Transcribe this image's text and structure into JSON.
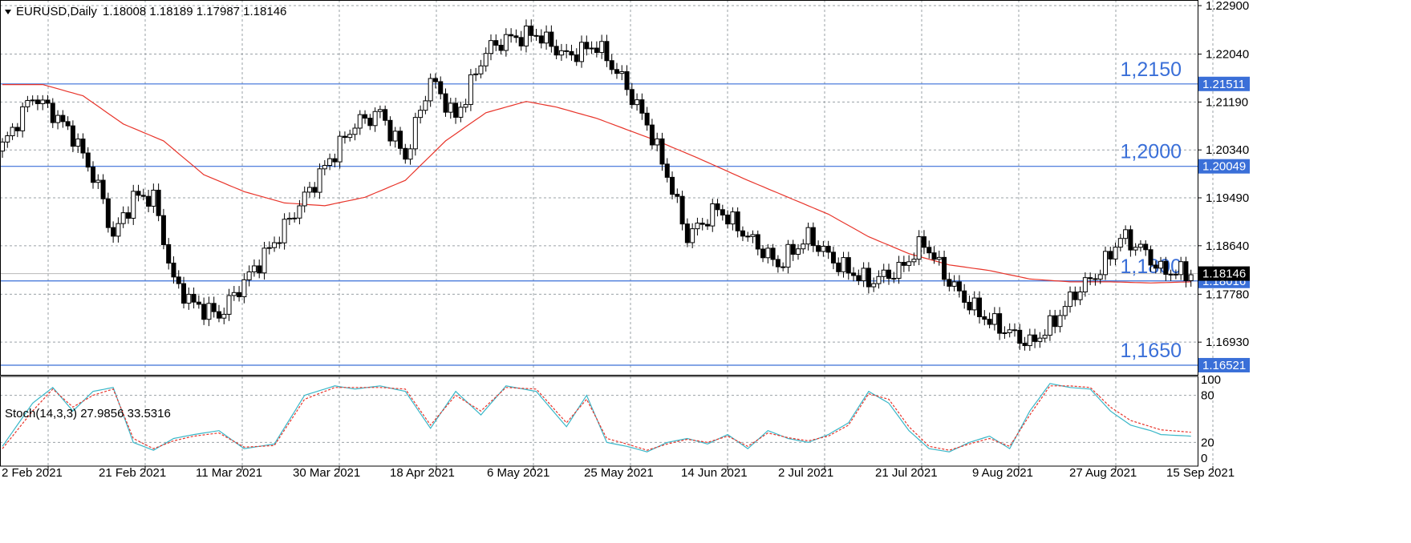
{
  "header": {
    "symbol": "EURUSD,Daily",
    "ohlc": "1.18008 1.18189 1.17987 1.18146",
    "indicator": "Stoch(14,3,3) 27.9856 33.5316"
  },
  "colors": {
    "bull_candle": "#ffffff",
    "bear_candle": "#000000",
    "moving_average": "#e8342a",
    "levels": "#3a6fd8",
    "stoch_main": "#3ab7c8",
    "stoch_signal": "#e8342a",
    "grid": "#9aa0a6",
    "price_badge": "#3a6fd8",
    "current_badge": "#000000"
  },
  "chart_data": [
    {
      "type": "candlestick",
      "title": "EURUSD,Daily",
      "x_ticks": [
        "2 Feb 2021",
        "21 Feb 2021",
        "11 Mar 2021",
        "30 Mar 2021",
        "18 Apr 2021",
        "6 May 2021",
        "25 May 2021",
        "14 Jun 2021",
        "2 Jul 2021",
        "21 Jul 2021",
        "9 Aug 2021",
        "27 Aug 2021",
        "15 Sep 2021"
      ],
      "y_ticks": [
        "1.22900",
        "1.22040",
        "1.21190",
        "1.20340",
        "1.19490",
        "1.18640",
        "1.17780",
        "1.16930"
      ],
      "ylim": [
        1.1635,
        1.23
      ],
      "grid": true,
      "horizontal_levels": [
        {
          "label": "1,2150",
          "badge": "1.21511",
          "value": 1.21511
        },
        {
          "label": "1,2000",
          "badge": "1.20049",
          "value": 1.20049
        },
        {
          "label": "1,1800",
          "badge": "1.18016",
          "value": 1.18016
        },
        {
          "label": "1,1650",
          "badge": "1.16521",
          "value": 1.16521
        }
      ],
      "current_price": {
        "badge": "1.18146",
        "value": 1.18146
      },
      "close_anchors": [
        [
          0,
          1.204
        ],
        [
          6,
          1.213
        ],
        [
          10,
          1.21
        ],
        [
          14,
          1.206
        ],
        [
          19,
          1.197
        ],
        [
          22,
          1.188
        ],
        [
          26,
          1.195
        ],
        [
          30,
          1.195
        ],
        [
          34,
          1.18
        ],
        [
          38,
          1.176
        ],
        [
          43,
          1.174
        ],
        [
          48,
          1.18
        ],
        [
          54,
          1.187
        ],
        [
          60,
          1.195
        ],
        [
          66,
          1.203
        ],
        [
          70,
          1.208
        ],
        [
          75,
          1.21
        ],
        [
          80,
          1.202
        ],
        [
          85,
          1.216
        ],
        [
          90,
          1.209
        ],
        [
          96,
          1.221
        ],
        [
          100,
          1.223
        ],
        [
          106,
          1.224
        ],
        [
          112,
          1.22
        ],
        [
          118,
          1.222
        ],
        [
          123,
          1.216
        ],
        [
          128,
          1.208
        ],
        [
          132,
          1.199
        ],
        [
          136,
          1.188
        ],
        [
          142,
          1.193
        ],
        [
          148,
          1.188
        ],
        [
          154,
          1.183
        ],
        [
          160,
          1.188
        ],
        [
          166,
          1.183
        ],
        [
          172,
          1.18
        ],
        [
          178,
          1.182
        ],
        [
          183,
          1.187
        ],
        [
          188,
          1.18
        ],
        [
          192,
          1.176
        ],
        [
          196,
          1.173
        ],
        [
          200,
          1.171
        ],
        [
          204,
          1.169
        ],
        [
          208,
          1.172
        ],
        [
          213,
          1.178
        ],
        [
          218,
          1.182
        ],
        [
          222,
          1.188
        ],
        [
          226,
          1.186
        ],
        [
          230,
          1.182
        ],
        [
          236,
          1.1815
        ]
      ],
      "moving_average_anchors": [
        [
          0,
          1.215
        ],
        [
          8,
          1.215
        ],
        [
          16,
          1.213
        ],
        [
          24,
          1.208
        ],
        [
          32,
          1.205
        ],
        [
          40,
          1.199
        ],
        [
          48,
          1.196
        ],
        [
          56,
          1.194
        ],
        [
          64,
          1.1935
        ],
        [
          72,
          1.195
        ],
        [
          80,
          1.198
        ],
        [
          88,
          1.205
        ],
        [
          96,
          1.21
        ],
        [
          104,
          1.212
        ],
        [
          110,
          1.211
        ],
        [
          118,
          1.209
        ],
        [
          124,
          1.207
        ],
        [
          130,
          1.205
        ],
        [
          138,
          1.202
        ],
        [
          148,
          1.198
        ],
        [
          156,
          1.195
        ],
        [
          164,
          1.192
        ],
        [
          172,
          1.188
        ],
        [
          180,
          1.185
        ],
        [
          188,
          1.183
        ],
        [
          196,
          1.182
        ],
        [
          204,
          1.1805
        ],
        [
          212,
          1.18
        ],
        [
          220,
          1.18
        ],
        [
          228,
          1.1798
        ],
        [
          236,
          1.18
        ]
      ],
      "bar_count": 237
    },
    {
      "type": "line",
      "title": "Stoch(14,3,3) 27.9856 33.5316",
      "y_ticks": [
        "100",
        "80",
        "20",
        "0"
      ],
      "ylim": [
        0,
        100
      ],
      "series": [
        {
          "name": "Main",
          "anchors": [
            [
              0,
              15
            ],
            [
              6,
              70
            ],
            [
              10,
              90
            ],
            [
              14,
              60
            ],
            [
              18,
              85
            ],
            [
              22,
              90
            ],
            [
              26,
              20
            ],
            [
              30,
              10
            ],
            [
              34,
              25
            ],
            [
              38,
              30
            ],
            [
              43,
              35
            ],
            [
              48,
              12
            ],
            [
              54,
              18
            ],
            [
              60,
              80
            ],
            [
              66,
              92
            ],
            [
              70,
              88
            ],
            [
              75,
              92
            ],
            [
              80,
              85
            ],
            [
              85,
              38
            ],
            [
              90,
              85
            ],
            [
              95,
              55
            ],
            [
              100,
              92
            ],
            [
              106,
              85
            ],
            [
              112,
              40
            ],
            [
              116,
              80
            ],
            [
              120,
              20
            ],
            [
              124,
              15
            ],
            [
              128,
              8
            ],
            [
              132,
              20
            ],
            [
              136,
              25
            ],
            [
              140,
              18
            ],
            [
              144,
              30
            ],
            [
              148,
              12
            ],
            [
              152,
              35
            ],
            [
              156,
              25
            ],
            [
              160,
              20
            ],
            [
              164,
              30
            ],
            [
              168,
              45
            ],
            [
              172,
              85
            ],
            [
              176,
              70
            ],
            [
              180,
              35
            ],
            [
              184,
              12
            ],
            [
              188,
              8
            ],
            [
              192,
              20
            ],
            [
              196,
              28
            ],
            [
              200,
              12
            ],
            [
              204,
              60
            ],
            [
              208,
              95
            ],
            [
              212,
              90
            ],
            [
              216,
              88
            ],
            [
              220,
              60
            ],
            [
              224,
              42
            ],
            [
              228,
              35
            ],
            [
              230,
              30
            ],
            [
              236,
              28
            ]
          ]
        },
        {
          "name": "Signal",
          "anchors": [
            [
              0,
              12
            ],
            [
              6,
              60
            ],
            [
              10,
              88
            ],
            [
              14,
              65
            ],
            [
              18,
              80
            ],
            [
              22,
              88
            ],
            [
              26,
              25
            ],
            [
              30,
              12
            ],
            [
              34,
              22
            ],
            [
              38,
              28
            ],
            [
              43,
              32
            ],
            [
              48,
              14
            ],
            [
              54,
              16
            ],
            [
              60,
              75
            ],
            [
              66,
              90
            ],
            [
              70,
              90
            ],
            [
              75,
              90
            ],
            [
              80,
              88
            ],
            [
              85,
              42
            ],
            [
              90,
              80
            ],
            [
              95,
              60
            ],
            [
              100,
              90
            ],
            [
              106,
              88
            ],
            [
              112,
              45
            ],
            [
              116,
              75
            ],
            [
              120,
              25
            ],
            [
              124,
              18
            ],
            [
              128,
              10
            ],
            [
              132,
              18
            ],
            [
              136,
              24
            ],
            [
              140,
              20
            ],
            [
              144,
              28
            ],
            [
              148,
              15
            ],
            [
              152,
              32
            ],
            [
              156,
              26
            ],
            [
              160,
              22
            ],
            [
              164,
              28
            ],
            [
              168,
              42
            ],
            [
              172,
              82
            ],
            [
              176,
              75
            ],
            [
              180,
              40
            ],
            [
              184,
              15
            ],
            [
              188,
              10
            ],
            [
              192,
              18
            ],
            [
              196,
              25
            ],
            [
              200,
              15
            ],
            [
              204,
              55
            ],
            [
              208,
              92
            ],
            [
              212,
              92
            ],
            [
              216,
              90
            ],
            [
              220,
              65
            ],
            [
              224,
              48
            ],
            [
              228,
              40
            ],
            [
              230,
              36
            ],
            [
              236,
              33
            ]
          ]
        }
      ]
    }
  ]
}
